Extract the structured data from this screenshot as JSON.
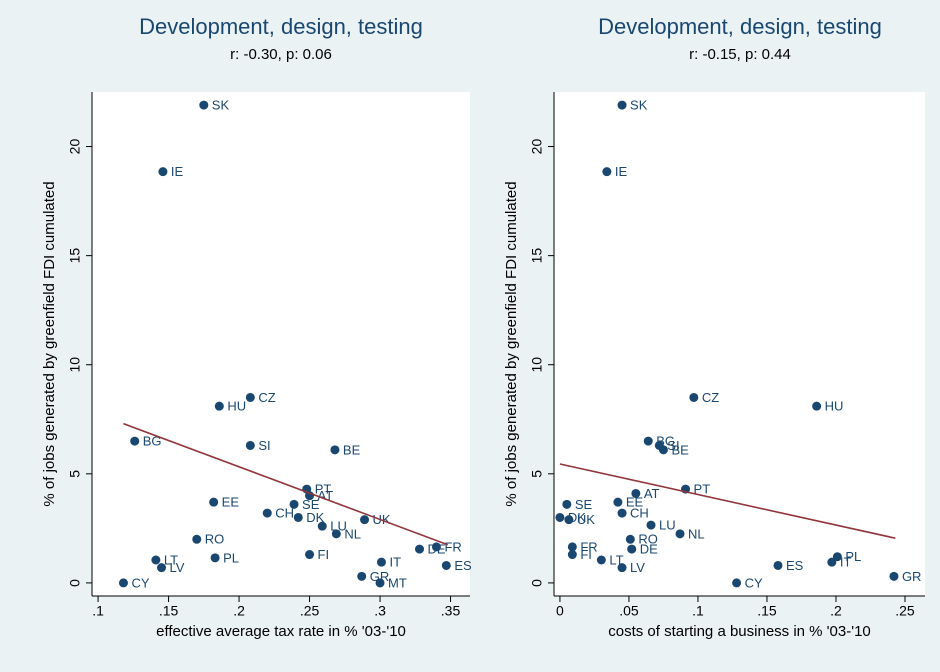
{
  "chart_data": [
    {
      "type": "scatter",
      "title": "Development, design, testing",
      "subtitle": "r: -0.30, p: 0.06",
      "xlabel": "effective average tax rate in % '03-'10",
      "ylabel": "% of jobs generated by greenfield FDI cumulated",
      "color": "#1a476f",
      "labels": [
        "SK",
        "IE",
        "CZ",
        "HU",
        "BG",
        "SI",
        "BE",
        "PT",
        "AT",
        "SE",
        "EE",
        "CH",
        "DK",
        "UK",
        "LU",
        "NL",
        "RO",
        "DE",
        "FR",
        "FI",
        "PL",
        "LT",
        "IT",
        "LV",
        "ES",
        "GR",
        "CY",
        "MT"
      ],
      "x": [
        0.175,
        0.146,
        0.208,
        0.186,
        0.126,
        0.208,
        0.268,
        0.248,
        0.25,
        0.239,
        0.182,
        0.22,
        0.242,
        0.289,
        0.259,
        0.269,
        0.17,
        0.328,
        0.34,
        0.25,
        0.183,
        0.141,
        0.301,
        0.145,
        0.347,
        0.287,
        0.118,
        0.3
      ],
      "y": [
        21.9,
        18.85,
        8.5,
        8.1,
        6.5,
        6.3,
        6.1,
        4.3,
        4.0,
        3.6,
        3.7,
        3.2,
        3.0,
        2.9,
        2.6,
        2.25,
        2.0,
        1.55,
        1.65,
        1.3,
        1.15,
        1.05,
        0.95,
        0.7,
        0.8,
        0.3,
        0,
        0
      ],
      "fit": {
        "x": [
          0.118,
          0.348
        ],
        "y": [
          7.3,
          1.75
        ],
        "color": "#90353b"
      },
      "xlim": [
        0.0957,
        0.3638
      ],
      "ylim": [
        -0.6,
        22.5
      ],
      "xticks": [
        {
          "value": 0.1,
          "label": ".1"
        },
        {
          "value": 0.15,
          "label": ".15"
        },
        {
          "value": 0.2,
          "label": ".2"
        },
        {
          "value": 0.25,
          "label": ".25"
        },
        {
          "value": 0.3,
          "label": ".3"
        },
        {
          "value": 0.35,
          "label": ".35"
        }
      ],
      "yticks": [
        0,
        5,
        10,
        15,
        20
      ]
    },
    {
      "type": "scatter",
      "title": "Development, design, testing",
      "subtitle": "r: -0.15, p: 0.44",
      "xlabel": "costs of starting a business in % '03-'10",
      "ylabel": "% of jobs generated by greenfield FDI cumulated",
      "color": "#1a476f",
      "labels": [
        "SK",
        "IE",
        "CZ",
        "HU",
        "BG",
        "SI",
        "BE",
        "PT",
        "AT",
        "SE",
        "EE",
        "DK",
        "UK",
        "CH",
        "LU",
        "NL",
        "RO",
        "FR",
        "DE",
        "FI",
        "LT",
        "PL",
        "IT",
        "ES",
        "LV",
        "GR",
        "CY"
      ],
      "x": [
        0.045,
        0.034,
        0.097,
        0.186,
        0.064,
        0.072,
        0.075,
        0.091,
        0.055,
        0.005,
        0.042,
        0,
        0.0065,
        0.045,
        0.066,
        0.087,
        0.051,
        0.009,
        0.052,
        0.009,
        0.03,
        0.201,
        0.197,
        0.158,
        0.045,
        0.242,
        0.128
      ],
      "y": [
        21.9,
        18.85,
        8.5,
        8.1,
        6.5,
        6.3,
        6.1,
        4.3,
        4.1,
        3.6,
        3.7,
        3.0,
        2.9,
        3.2,
        2.65,
        2.25,
        2.0,
        1.65,
        1.55,
        1.3,
        1.05,
        1.2,
        0.95,
        0.8,
        0.7,
        0.3,
        0
      ],
      "fit": {
        "x": [
          0,
          0.243
        ],
        "y": [
          5.45,
          2.05
        ],
        "color": "#90353b"
      },
      "xlim": [
        -0.0043,
        0.2645
      ],
      "ylim": [
        -0.6,
        22.5
      ],
      "xticks": [
        0,
        {
          "value": 0.05,
          "label": ".05"
        },
        {
          "value": 0.1,
          "label": ".1"
        },
        {
          "value": 0.15,
          "label": ".15"
        },
        {
          "value": 0.2,
          "label": ".2"
        },
        {
          "value": 0.25,
          "label": ".25"
        }
      ],
      "yticks": [
        0,
        5,
        10,
        15,
        20
      ]
    }
  ]
}
